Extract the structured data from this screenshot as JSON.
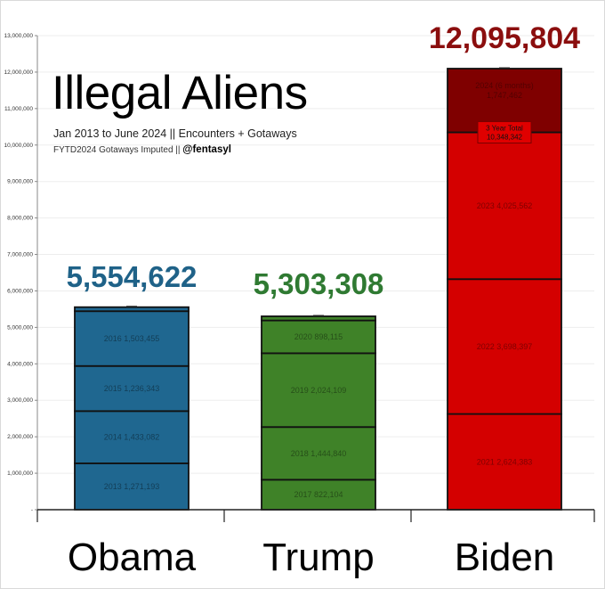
{
  "chart_data": {
    "type": "bar",
    "stacked": true,
    "title": "Illegal Aliens",
    "subtitle": "Jan 2013 to June 2024 || Encounters + Gotaways",
    "note_left": "FYTD2024 Gotaways Imputed  ||",
    "note_handle": "@fentasyl",
    "ylim": [
      0,
      13000000
    ],
    "yticks": [
      {
        "value": 0,
        "label": "-"
      },
      {
        "value": 1000000,
        "label": "1,000,000"
      },
      {
        "value": 2000000,
        "label": "2,000,000"
      },
      {
        "value": 3000000,
        "label": "3,000,000"
      },
      {
        "value": 4000000,
        "label": "4,000,000"
      },
      {
        "value": 5000000,
        "label": "5,000,000"
      },
      {
        "value": 6000000,
        "label": "6,000,000"
      },
      {
        "value": 7000000,
        "label": "7,000,000"
      },
      {
        "value": 8000000,
        "label": "8,000,000"
      },
      {
        "value": 9000000,
        "label": "9,000,000"
      },
      {
        "value": 10000000,
        "label": "10,000,000"
      },
      {
        "value": 11000000,
        "label": "11,000,000"
      },
      {
        "value": 12000000,
        "label": "12,000,000"
      },
      {
        "value": 13000000,
        "label": "13,000,000"
      }
    ],
    "groups": [
      {
        "name": "Obama",
        "total_label": "5,554,622",
        "total_color": "#1f6288",
        "color": "#1f6790",
        "segments": [
          {
            "label": "2013  1,271,193",
            "value": 1271193
          },
          {
            "label": "2014  1,433,082",
            "value": 1433082
          },
          {
            "label": "2015  1,236,343",
            "value": 1236343
          },
          {
            "label": "2016  1,503,455",
            "value": 1503455
          },
          {
            "label": "",
            "value": 110549
          }
        ]
      },
      {
        "name": "Trump",
        "total_label": "5,303,308",
        "total_color": "#2f7a32",
        "color": "#3f8228",
        "segments": [
          {
            "label": "2017  822,104",
            "value": 822104
          },
          {
            "label": "2018  1,444,840",
            "value": 1444840
          },
          {
            "label": "2019  2,024,109",
            "value": 2024109
          },
          {
            "label": "2020  898,115",
            "value": 898115
          },
          {
            "label": "",
            "value": 114140
          }
        ]
      },
      {
        "name": "Biden",
        "total_label": "12,095,804",
        "total_color": "#8b0e0e",
        "color": "#d40000",
        "segments": [
          {
            "label": "2021  2,624,383",
            "value": 2624383
          },
          {
            "label": "2022  3,698,397",
            "value": 3698397
          },
          {
            "label": "2023  4,025,562",
            "value": 4025562
          },
          {
            "label": "2024 (6 months)",
            "label2": "1,747,462",
            "value": 1747462,
            "color": "#7f0000"
          }
        ],
        "callout": {
          "line1": "3 Year Total",
          "line2": "10,348,342",
          "value": 10348342
        }
      }
    ]
  }
}
